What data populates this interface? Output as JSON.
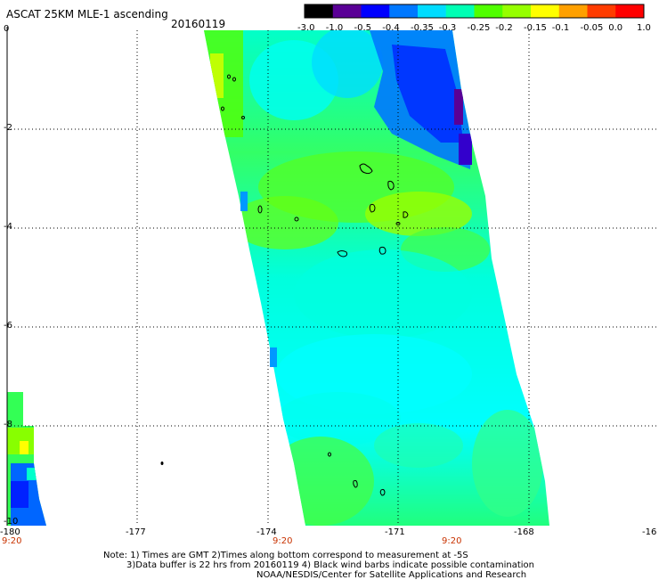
{
  "header": {
    "title": "ASCAT 25KM MLE-1 ascending",
    "date": "20160119"
  },
  "colorbar": {
    "labels": [
      "-3.0",
      "-1.0",
      "-0.5",
      "-0.4",
      "-0.35",
      "-0.3",
      "-0.25",
      "-0.2",
      "-0.15",
      "-0.1",
      "-0.05",
      "0.0",
      "1.0"
    ],
    "colors": [
      "#000000",
      "#5a0096",
      "#0000ff",
      "#0078ff",
      "#00dcff",
      "#00ffb4",
      "#50ff00",
      "#96ff00",
      "#ffff00",
      "#ffa000",
      "#ff3c00",
      "#ff0000"
    ]
  },
  "axes": {
    "x_labels": [
      "-180",
      "-177",
      "-174",
      "-171",
      "-168",
      "-16"
    ],
    "y_labels": [
      "0",
      "-2",
      "-4",
      "-6",
      "-8",
      "-10"
    ],
    "time_labels": [
      "9:20",
      "9:20",
      "9:20"
    ]
  },
  "notes": {
    "line1": "Note: 1) Times are GMT 2)Times along bottom correspond to measurement at -5S",
    "line2": "3)Data buffer is 22 hrs from 20160119 4) Black wind barbs indicate possible contamination",
    "line3": "NOAA/NESDIS/Center for Satellite Applications and Research"
  }
}
